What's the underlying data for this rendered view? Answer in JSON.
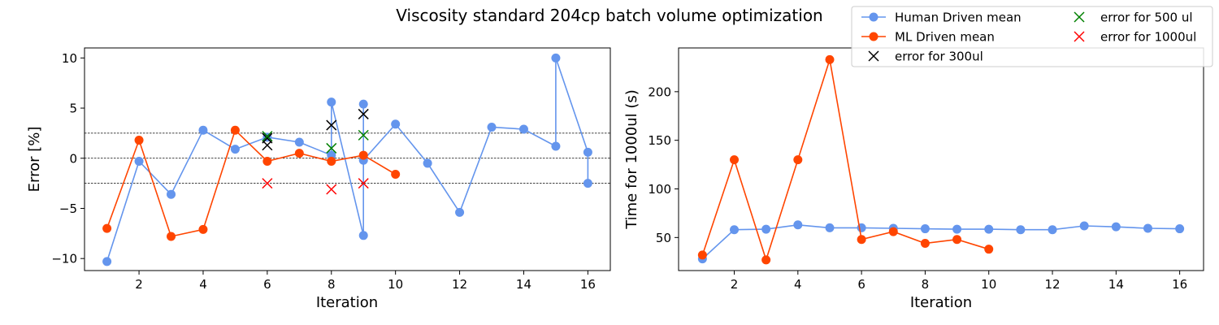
{
  "figure": {
    "title": "Viscosity standard 204cp batch volume optimization"
  },
  "colors": {
    "human": "#6495ed",
    "ml": "#ff4500",
    "err300": "#000000",
    "err500": "#008000",
    "err1000": "#ff0000"
  },
  "legend": {
    "entries": [
      {
        "key": "human",
        "label": "Human Driven mean",
        "marker": "circle"
      },
      {
        "key": "ml",
        "label": "ML Driven mean",
        "marker": "circle"
      },
      {
        "key": "err300",
        "label": "error for 300ul",
        "marker": "x"
      },
      {
        "key": "err500",
        "label": "error for 500 ul",
        "marker": "x"
      },
      {
        "key": "err1000",
        "label": "error for 1000ul",
        "marker": "x"
      }
    ]
  },
  "chart_data": [
    {
      "type": "line",
      "xlabel": "Iteration",
      "ylabel": "Error [%]",
      "xlim": [
        0.3,
        16.7
      ],
      "ylim": [
        -11.2,
        11.0
      ],
      "xticks": [
        2,
        4,
        6,
        8,
        10,
        12,
        14,
        16
      ],
      "yticks": [
        -10,
        -5,
        0,
        5,
        10
      ],
      "reference_lines": [
        2.5,
        0,
        -2.5
      ],
      "series": [
        {
          "name": "Human Driven mean",
          "color_key": "human",
          "points": [
            [
              1,
              -10.3
            ],
            [
              2,
              -0.3
            ],
            [
              3,
              -3.6
            ],
            [
              4,
              2.8
            ],
            [
              5,
              0.9
            ],
            [
              6,
              2.1
            ],
            [
              7,
              1.6
            ],
            [
              8,
              0.3
            ],
            [
              8,
              5.6
            ],
            [
              9,
              -7.7
            ],
            [
              9,
              5.4
            ],
            [
              9,
              -0.2
            ],
            [
              10,
              3.4
            ],
            [
              11,
              -0.5
            ],
            [
              12,
              -5.4
            ],
            [
              13,
              3.1
            ],
            [
              14,
              2.9
            ],
            [
              15,
              1.2
            ],
            [
              15,
              10.0
            ],
            [
              16,
              0.6
            ],
            [
              16,
              -2.5
            ]
          ]
        },
        {
          "name": "ML Driven mean",
          "color_key": "ml",
          "points": [
            [
              1,
              -7.0
            ],
            [
              2,
              1.8
            ],
            [
              3,
              -7.8
            ],
            [
              4,
              -7.1
            ],
            [
              5,
              2.8
            ],
            [
              6,
              -0.3
            ],
            [
              7,
              0.5
            ],
            [
              8,
              -0.3
            ],
            [
              9,
              0.3
            ],
            [
              10,
              -1.6
            ]
          ]
        }
      ],
      "scatter": [
        {
          "name": "error for 300ul",
          "color_key": "err300",
          "points": [
            [
              6,
              1.3
            ],
            [
              6,
              2.0
            ],
            [
              8,
              3.3
            ],
            [
              9,
              4.4
            ]
          ]
        },
        {
          "name": "error for 500 ul",
          "color_key": "err500",
          "points": [
            [
              6,
              2.2
            ],
            [
              8,
              1.0
            ],
            [
              9,
              2.3
            ]
          ]
        },
        {
          "name": "error for 1000ul",
          "color_key": "err1000",
          "points": [
            [
              6,
              -2.5
            ],
            [
              8,
              -3.1
            ],
            [
              9,
              -2.5
            ]
          ]
        }
      ]
    },
    {
      "type": "line",
      "xlabel": "Iteration",
      "ylabel": "Time for 1000ul (s)",
      "xlim": [
        0.25,
        16.75
      ],
      "ylim": [
        16,
        245
      ],
      "xticks": [
        2,
        4,
        6,
        8,
        10,
        12,
        14,
        16
      ],
      "yticks": [
        50,
        100,
        150,
        200
      ],
      "series": [
        {
          "name": "Human Driven mean",
          "color_key": "human",
          "points": [
            [
              1,
              28
            ],
            [
              2,
              58
            ],
            [
              3,
              58.5
            ],
            [
              4,
              63
            ],
            [
              5,
              60
            ],
            [
              6,
              60
            ],
            [
              7,
              59.5
            ],
            [
              8,
              59
            ],
            [
              9,
              58.5
            ],
            [
              10,
              58.5
            ],
            [
              11,
              58
            ],
            [
              12,
              58
            ],
            [
              13,
              62
            ],
            [
              14,
              61
            ],
            [
              15,
              59.5
            ],
            [
              16,
              59
            ]
          ]
        },
        {
          "name": "ML Driven mean",
          "color_key": "ml",
          "points": [
            [
              1,
              32
            ],
            [
              2,
              130
            ],
            [
              3,
              27
            ],
            [
              4,
              130
            ],
            [
              5,
              233
            ],
            [
              6,
              48
            ],
            [
              7,
              56
            ],
            [
              8,
              44
            ],
            [
              9,
              48
            ],
            [
              10,
              38
            ]
          ]
        }
      ]
    }
  ]
}
